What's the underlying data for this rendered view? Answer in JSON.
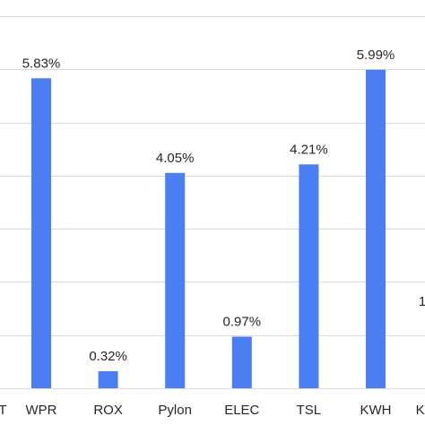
{
  "chart_data": {
    "type": "bar",
    "title": "",
    "xlabel": "",
    "ylabel": "",
    "categories": [
      "WPR",
      "ROX",
      "Pylon",
      "ELEC",
      "TSL",
      "KWH"
    ],
    "values": [
      5.83,
      0.32,
      4.05,
      0.97,
      4.21,
      5.99
    ],
    "value_labels": [
      "5.83%",
      "0.32%",
      "4.05%",
      "0.97%",
      "4.21%",
      "5.99%"
    ],
    "ylim": [
      -0.6,
      7.5
    ],
    "gridline_values": [
      0,
      1,
      2,
      3,
      4,
      5,
      6,
      7
    ],
    "grid": true,
    "legend": "none",
    "bar_color": "#4a7ef2",
    "gridline_color": "#d9d9d9",
    "text_color": "#262626",
    "cropped_edge_labels": {
      "left_tick": "T",
      "right_tick": "K'",
      "right_value": "1"
    }
  }
}
